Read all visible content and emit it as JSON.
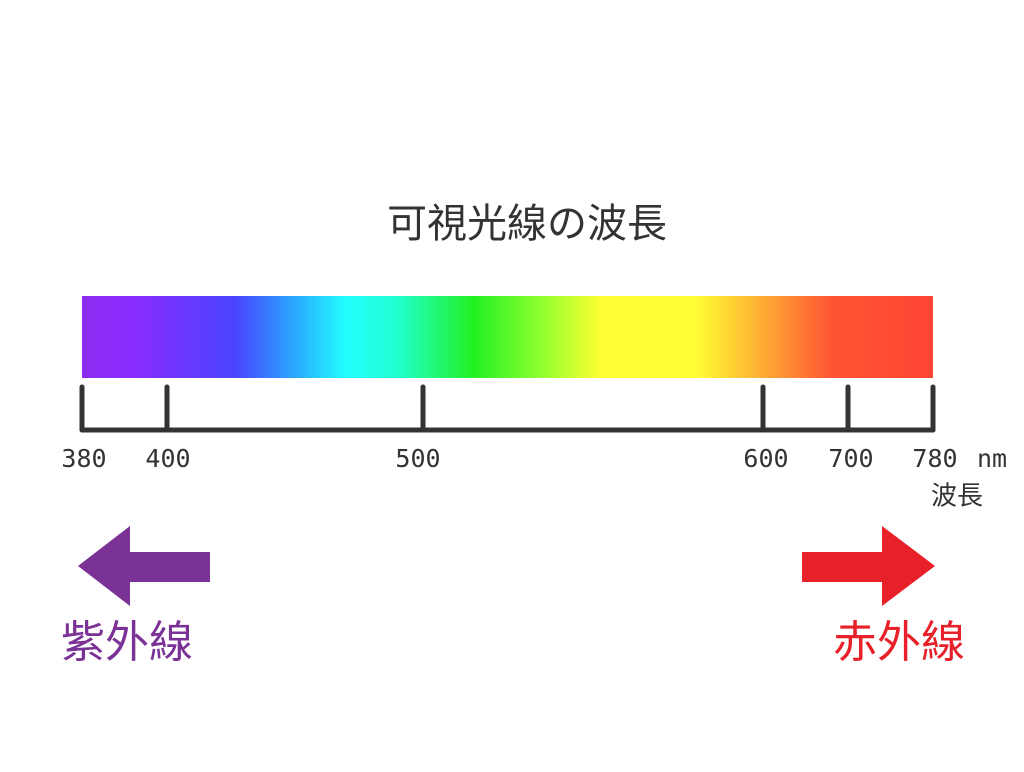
{
  "title": "可視光線の波長",
  "scale": {
    "ticks": [
      "380",
      "400",
      "500",
      "600",
      "700",
      "780"
    ],
    "unit": "nm",
    "axis_label": "波長"
  },
  "left": {
    "label": "紫外線"
  },
  "right": {
    "label": "赤外線"
  }
}
